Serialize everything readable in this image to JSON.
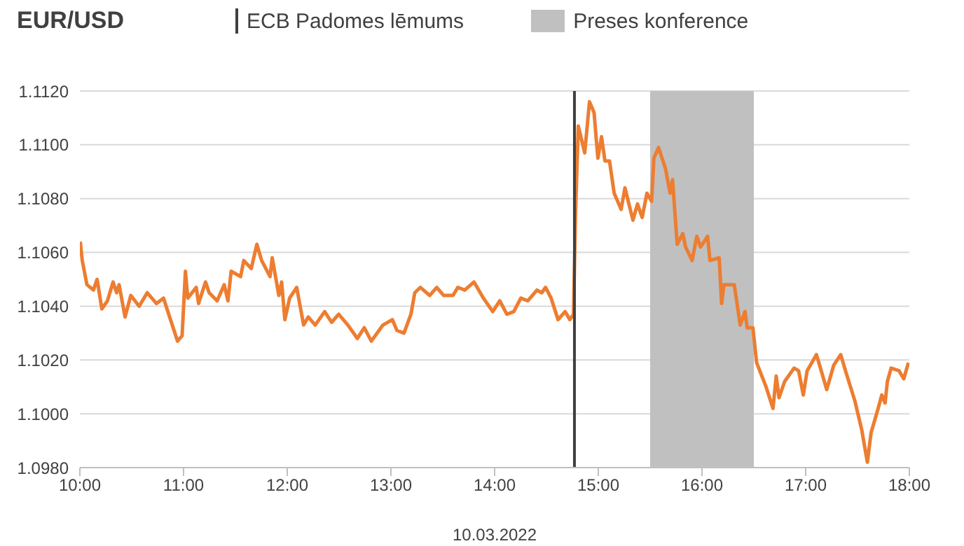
{
  "chart_data": {
    "type": "line",
    "title": "EUR/USD",
    "xlabel": "10.03.2022",
    "x": [
      10.004,
      10.023,
      10.068,
      10.131,
      10.166,
      10.212,
      10.266,
      10.32,
      10.355,
      10.378,
      10.436,
      10.491,
      10.572,
      10.649,
      10.739,
      10.807,
      10.874,
      10.942,
      10.986,
      11.018,
      11.041,
      11.122,
      11.145,
      11.212,
      11.247,
      11.324,
      11.392,
      11.428,
      11.459,
      11.55,
      11.581,
      11.653,
      11.707,
      11.753,
      11.834,
      11.855,
      11.919,
      11.946,
      11.977,
      12.023,
      12.091,
      12.158,
      12.203,
      12.27,
      12.361,
      12.428,
      12.496,
      12.585,
      12.676,
      12.743,
      12.811,
      12.923,
      13.014,
      13.058,
      13.126,
      13.193,
      13.23,
      13.284,
      13.374,
      13.442,
      13.509,
      13.599,
      13.645,
      13.712,
      13.801,
      13.892,
      13.982,
      14.05,
      14.118,
      14.185,
      14.253,
      14.32,
      14.409,
      14.455,
      14.491,
      14.545,
      14.612,
      14.68,
      14.726,
      14.761,
      14.78,
      14.807,
      14.838,
      14.869,
      14.915,
      14.959,
      14.996,
      15.031,
      15.064,
      15.108,
      15.153,
      15.22,
      15.257,
      15.334,
      15.378,
      15.423,
      15.469,
      15.514,
      15.536,
      15.581,
      15.649,
      15.693,
      15.716,
      15.761,
      15.815,
      15.842,
      15.905,
      15.95,
      15.986,
      16.054,
      16.077,
      16.166,
      16.189,
      16.212,
      16.311,
      16.369,
      16.415,
      16.436,
      16.491,
      16.527,
      16.618,
      16.685,
      16.716,
      16.743,
      16.797,
      16.888,
      16.932,
      16.977,
      17.014,
      17.104,
      17.135,
      17.203,
      17.27,
      17.338,
      17.392,
      17.473,
      17.541,
      17.595,
      17.631,
      17.699,
      17.734,
      17.766,
      17.788,
      17.824,
      17.901,
      17.946,
      17.991
    ],
    "series": [
      {
        "color": "#ed7d31",
        "values": [
          1.1064,
          1.1057,
          1.1048,
          1.1046,
          1.105,
          1.1039,
          1.1042,
          1.1049,
          1.1045,
          1.1048,
          1.1036,
          1.1044,
          1.104,
          1.1045,
          1.1041,
          1.1043,
          1.1035,
          1.1027,
          1.1029,
          1.1053,
          1.1043,
          1.1047,
          1.1041,
          1.1049,
          1.1045,
          1.1042,
          1.1048,
          1.1042,
          1.1053,
          1.1051,
          1.1057,
          1.1054,
          1.1063,
          1.1057,
          1.1051,
          1.1058,
          1.1044,
          1.1049,
          1.1035,
          1.1043,
          1.1047,
          1.1033,
          1.1036,
          1.1033,
          1.1038,
          1.1034,
          1.1037,
          1.1033,
          1.1028,
          1.1032,
          1.1027,
          1.1033,
          1.1035,
          1.1031,
          1.103,
          1.1037,
          1.1045,
          1.1047,
          1.1044,
          1.1047,
          1.1044,
          1.1044,
          1.1047,
          1.1046,
          1.1049,
          1.1043,
          1.1038,
          1.1042,
          1.1037,
          1.1038,
          1.1043,
          1.1042,
          1.1046,
          1.1045,
          1.1047,
          1.1043,
          1.1035,
          1.1038,
          1.1035,
          1.1037,
          1.1074,
          1.1107,
          1.1102,
          1.1097,
          1.1116,
          1.1112,
          1.1095,
          1.1103,
          1.1094,
          1.1094,
          1.1082,
          1.1076,
          1.1084,
          1.1072,
          1.1078,
          1.1073,
          1.1082,
          1.1079,
          1.1095,
          1.1099,
          1.1091,
          1.1082,
          1.1087,
          1.1063,
          1.1067,
          1.1062,
          1.1057,
          1.1066,
          1.1062,
          1.1066,
          1.1057,
          1.1058,
          1.1041,
          1.1048,
          1.1048,
          1.1033,
          1.1038,
          1.1032,
          1.1032,
          1.1019,
          1.101,
          1.1002,
          1.1014,
          1.1006,
          1.1012,
          1.1017,
          1.1016,
          1.1007,
          1.1016,
          1.1022,
          1.1018,
          1.1009,
          1.1018,
          1.1022,
          1.1015,
          1.1005,
          1.0994,
          1.0982,
          1.0993,
          1.1002,
          1.1007,
          1.1004,
          1.1012,
          1.1017,
          1.1016,
          1.1013,
          1.1019
        ]
      }
    ],
    "xlim": [
      10,
      18
    ],
    "xticks": [
      {
        "value": 10,
        "label": "10:00"
      },
      {
        "value": 11,
        "label": "11:00"
      },
      {
        "value": 12,
        "label": "12:00"
      },
      {
        "value": 13,
        "label": "13:00"
      },
      {
        "value": 14,
        "label": "14:00"
      },
      {
        "value": 15,
        "label": "15:00"
      },
      {
        "value": 16,
        "label": "16:00"
      },
      {
        "value": 17,
        "label": "17:00"
      },
      {
        "value": 18,
        "label": "18:00"
      }
    ],
    "ylim": [
      1.098,
      1.112
    ],
    "yticks": [
      {
        "value": 1.098,
        "label": "1.0980"
      },
      {
        "value": 1.1,
        "label": "1.1000"
      },
      {
        "value": 1.102,
        "label": "1.1020"
      },
      {
        "value": 1.104,
        "label": "1.1040"
      },
      {
        "value": 1.106,
        "label": "1.1060"
      },
      {
        "value": 1.108,
        "label": "1.1080"
      },
      {
        "value": 1.11,
        "label": "1.1100"
      },
      {
        "value": 1.112,
        "label": "1.1120"
      }
    ],
    "ref_lines": [
      {
        "axis": "x",
        "value": 14.77,
        "label": "ECB Padomes lēmums",
        "color": "#404040"
      }
    ],
    "bands": [
      {
        "axis": "x",
        "from": 15.5,
        "to": 16.5,
        "label": "Preses konference",
        "color": "#c0c0c0"
      }
    ],
    "grid": "y",
    "legend": "top",
    "marker": "none",
    "line_style": "solid"
  }
}
